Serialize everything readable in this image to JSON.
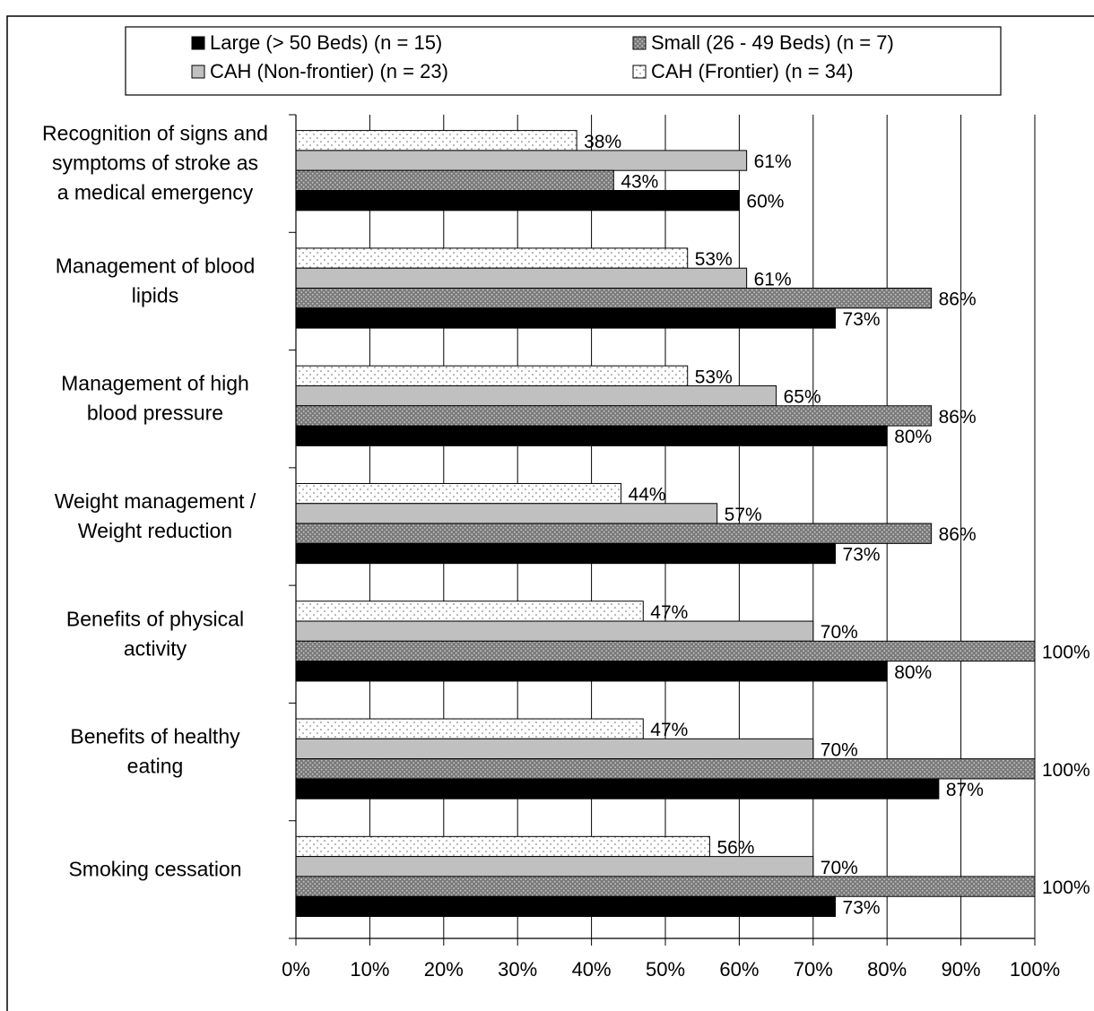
{
  "title": "",
  "chart_data": {
    "type": "bar",
    "orientation": "horizontal",
    "categories": [
      [
        "Recognition of signs and",
        "symptoms of stroke as",
        "a medical emergency"
      ],
      [
        "Management of blood",
        "lipids"
      ],
      [
        "Management of high",
        "blood pressure"
      ],
      [
        "Weight management /",
        "Weight reduction"
      ],
      [
        "Benefits of physical",
        "activity"
      ],
      [
        "Benefits of healthy",
        "eating"
      ],
      [
        "Smoking cessation"
      ]
    ],
    "series": [
      {
        "name": "CAH (Frontier) (n = 34)",
        "pattern": "dots-white",
        "values": [
          38,
          53,
          53,
          44,
          47,
          47,
          56
        ]
      },
      {
        "name": "CAH (Non-frontier) (n = 23)",
        "pattern": "solid-gray",
        "color": "#c0c0c0",
        "values": [
          61,
          61,
          65,
          57,
          70,
          70,
          70
        ]
      },
      {
        "name": "Small  (26 - 49 Beds) (n = 7)",
        "pattern": "dots-dark",
        "color": "#808080",
        "values": [
          43,
          86,
          86,
          86,
          100,
          100,
          100
        ]
      },
      {
        "name": "Large (> 50 Beds) (n = 15)",
        "pattern": "solid-black",
        "color": "#000000",
        "values": [
          60,
          73,
          80,
          73,
          80,
          87,
          73
        ]
      }
    ],
    "legend_order": [
      "Large (> 50 Beds) (n = 15)",
      "Small  (26 - 49 Beds) (n = 7)",
      "CAH (Non-frontier) (n = 23)",
      "CAH (Frontier) (n = 34)"
    ],
    "value_suffix": "%",
    "xlim": [
      0,
      100
    ],
    "xticks": [
      0,
      10,
      20,
      30,
      40,
      50,
      60,
      70,
      80,
      90,
      100
    ],
    "xtick_labels": [
      "0%",
      "10%",
      "20%",
      "30%",
      "40%",
      "50%",
      "60%",
      "70%",
      "80%",
      "90%",
      "100%"
    ],
    "grid": "vertical",
    "legend_position": "top"
  }
}
